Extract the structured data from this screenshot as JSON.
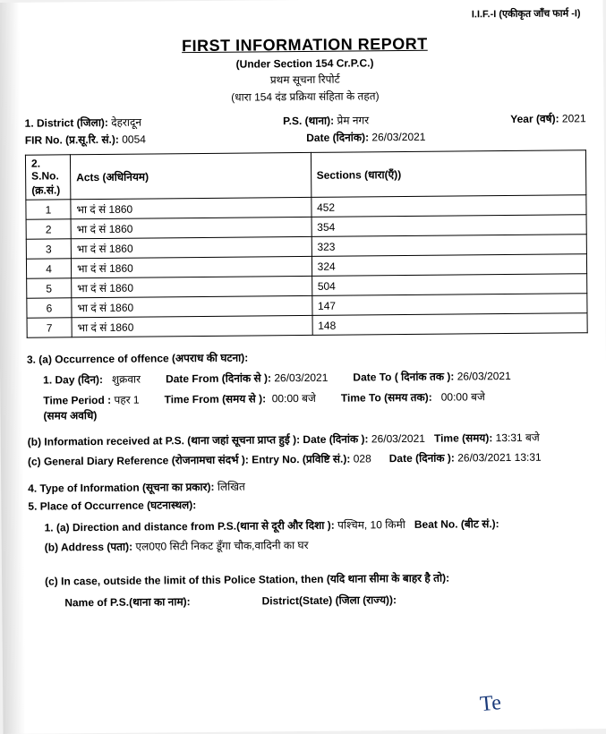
{
  "header": {
    "iif_label": "I.I.F.-I (एकीकृत जाँच फार्म -I)",
    "title": "FIRST INFORMATION REPORT",
    "subtitle": "(Under Section 154 Cr.P.C.)",
    "hindi1": "प्रथम सूचना रिपोर्ट",
    "hindi2": "(धारा 154 दंड प्रक्रिया संहिता के तहत)"
  },
  "meta": {
    "district_label": "1. District (जिला):",
    "district": "देहरादून",
    "ps_label": "P.S. (थाना):",
    "ps": "प्रेम नगर",
    "year_label": "Year (वर्ष):",
    "year": "2021",
    "fir_label": "FIR No. (प्र.सू.रि. सं.):",
    "fir_no": "0054",
    "date_label": "Date (दिनांक):",
    "date": "26/03/2021"
  },
  "acts_table": {
    "section_no": "2.",
    "columns": [
      "S.No. (क्र.सं.)",
      "Acts (अधिनियम)",
      "Sections (धारा(एँ))"
    ],
    "rows": [
      [
        "1",
        "भा दं सं 1860",
        "452"
      ],
      [
        "2",
        "भा दं सं 1860",
        "354"
      ],
      [
        "3",
        "भा दं सं 1860",
        "323"
      ],
      [
        "4",
        "भा दं सं 1860",
        "324"
      ],
      [
        "5",
        "भा दं सं 1860",
        "504"
      ],
      [
        "6",
        "भा दं सं 1860",
        "147"
      ],
      [
        "7",
        "भा दं सं 1860",
        "148"
      ]
    ]
  },
  "occurrence": {
    "header": "3. (a) Occurrence of offence (अपराध की घटना):",
    "day_label": "1.  Day (दिन):",
    "day": "शुक्रवार",
    "date_from_label": "Date From (दिनांक से ):",
    "date_from": "26/03/2021",
    "date_to_label": "Date To ( दिनांक तक ):",
    "date_to": "26/03/2021",
    "time_period_label": "Time Period :",
    "time_period": "पहर 1",
    "time_period_sub": "(समय अवधि)",
    "time_from_label": "Time From (समय से ):",
    "time_from": "00:00 बजे",
    "time_to_label": "Time To (समय तक):",
    "time_to": "00:00 बजे"
  },
  "info_received": {
    "label_b": "(b) Information received at P.S. (थाना  जहां सूचना प्राप्त हुई ):",
    "date_l": "Date (दिनांक ):",
    "date_v": "26/03/2021",
    "time_l": "Time (समय):",
    "time_v": "13:31 बजे",
    "label_c": "(c) General Diary Reference (रोजनामचा संदर्भ ):",
    "entry_l": "Entry No. (प्रविष्टि सं.):",
    "entry_v": "028",
    "cdate_l": "Date (दिनांक ):",
    "cdate_v": "26/03/2021 13:31"
  },
  "type_info": {
    "label4": "4. Type of Information (सूचना का प्रकार):",
    "value4": "लिखित",
    "label5": "5. Place of Occurrence (घटनास्थल):",
    "dir_label": "1. (a) Direction and distance from P.S.(थाना से दूरी और दिशा ):",
    "dir_value": "पश्चिम,  10   किमी",
    "beat_label": "Beat No. (बीट सं.):",
    "addr_label": "(b) Address (पता):",
    "addr_value": "एल0ए0 सिटी निकट डूँगा चौक,वादिनी का घर",
    "outside_label": "(c) In case, outside the limit of this Police Station, then (यदि थाना सीमा के बाहर है तो):",
    "nameps_label": "Name of P.S.(थाना का नाम):",
    "diststate_label": "District(State) (जिला (राज्य)):"
  },
  "signature": "Te"
}
